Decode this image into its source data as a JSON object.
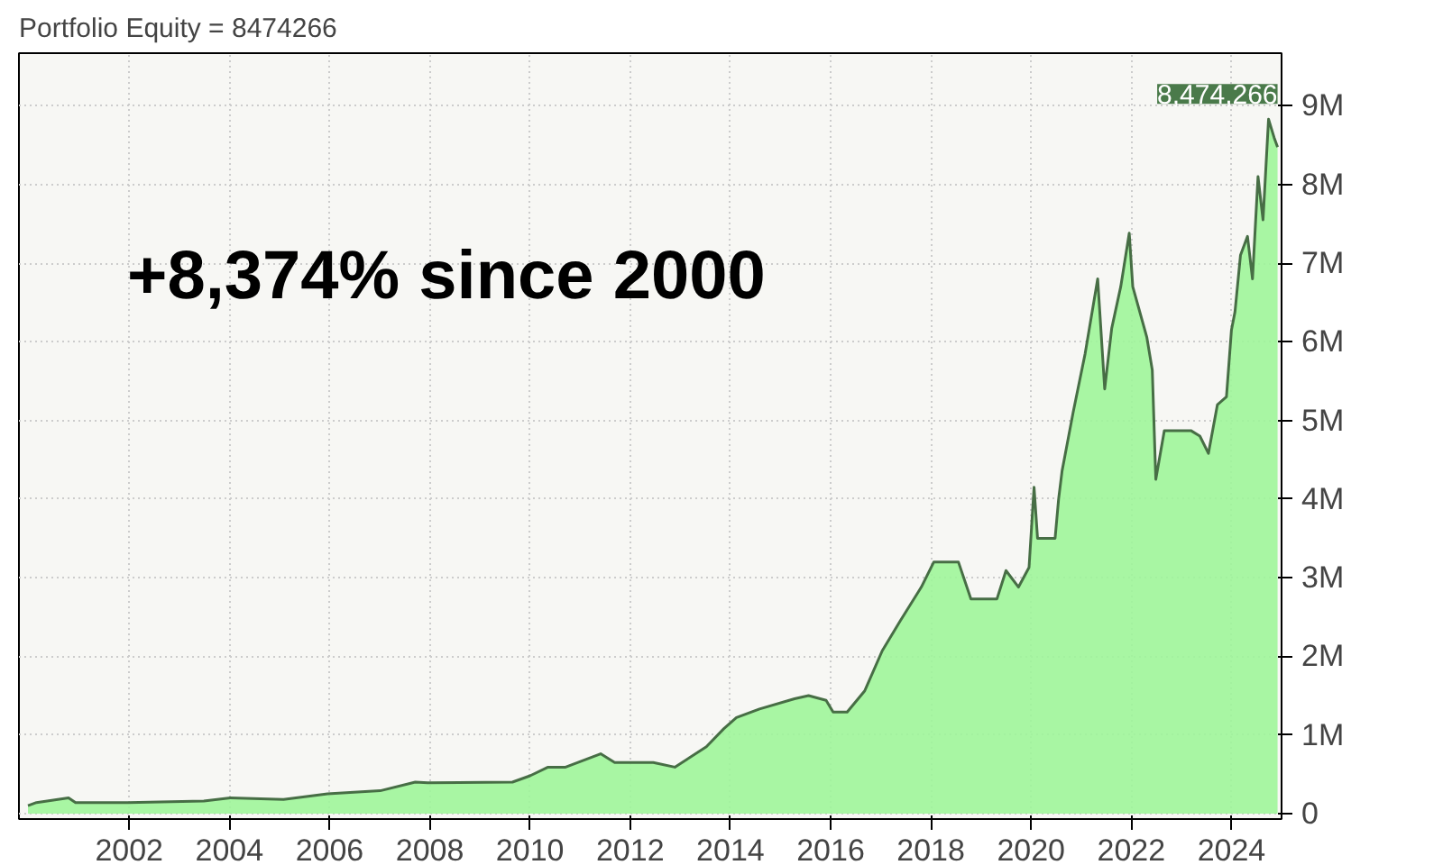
{
  "chart_data": {
    "type": "area",
    "title": "Portfolio Equity = 8474266",
    "annotations": [
      "+8,374% since 2000",
      {
        "text": "8,474,266",
        "x": 2024.92,
        "y": 8474266
      }
    ],
    "x": [
      1999.98,
      2000.15,
      2000.79,
      2000.93,
      2001.98,
      2003.49,
      2004.02,
      2005.08,
      2005.96,
      2007.01,
      2007.71,
      2007.96,
      2009.65,
      2010.0,
      2010.36,
      2010.71,
      2011.41,
      2011.69,
      2012.46,
      2012.89,
      2013.52,
      2013.87,
      2014.12,
      2014.58,
      2015.28,
      2015.56,
      2015.91,
      2016.05,
      2016.33,
      2016.68,
      2017.03,
      2017.39,
      2017.81,
      2018.06,
      2018.55,
      2018.8,
      2019.32,
      2019.5,
      2019.75,
      2019.96,
      2020.06,
      2020.13,
      2020.48,
      2020.55,
      2020.62,
      2020.84,
      2021.08,
      2021.33,
      2021.47,
      2021.61,
      2021.79,
      2021.96,
      2022.03,
      2022.31,
      2022.42,
      2022.49,
      2022.66,
      2023.19,
      2023.37,
      2023.54,
      2023.72,
      2023.9,
      2024.0,
      2024.07,
      2024.18,
      2024.32,
      2024.42,
      2024.53,
      2024.63,
      2024.74,
      2024.85,
      2024.92
    ],
    "series": [
      {
        "color": "#9ef59a",
        "values": [
          100000,
          140000,
          200000,
          140000,
          140000,
          160000,
          200000,
          180000,
          250000,
          290000,
          400000,
          390000,
          400000,
          480000,
          590000,
          590000,
          760000,
          650000,
          650000,
          590000,
          850000,
          1080000,
          1220000,
          1330000,
          1460000,
          1500000,
          1440000,
          1290000,
          1290000,
          1560000,
          2070000,
          2450000,
          2880000,
          3200000,
          3200000,
          2730000,
          2730000,
          3090000,
          2880000,
          3130000,
          4150000,
          3500000,
          3500000,
          4000000,
          4360000,
          5100000,
          5850000,
          6800000,
          5400000,
          6170000,
          6700000,
          7380000,
          6700000,
          6060000,
          5640000,
          4250000,
          4870000,
          4870000,
          4800000,
          4580000,
          5200000,
          5300000,
          6150000,
          6380000,
          7100000,
          7340000,
          6800000,
          8100000,
          7550000,
          8830000,
          8600000,
          8474266
        ]
      }
    ],
    "xlim": [
      1999.8,
      2025.0
    ],
    "ylim": [
      -70000,
      9670000
    ],
    "xticks": [
      2002,
      2004,
      2006,
      2008,
      2010,
      2012,
      2014,
      2016,
      2018,
      2020,
      2022,
      2024
    ],
    "yticks": [
      {
        "value": 0,
        "label": "0"
      },
      {
        "value": 1000000,
        "label": "1M"
      },
      {
        "value": 2000000,
        "label": "2M"
      },
      {
        "value": 3000000,
        "label": "3M"
      },
      {
        "value": 4000000,
        "label": "4M"
      },
      {
        "value": 5000000,
        "label": "5M"
      },
      {
        "value": 6000000,
        "label": "6M"
      },
      {
        "value": 7000000,
        "label": "7M"
      },
      {
        "value": 8000000,
        "label": "8M"
      },
      {
        "value": 9000000,
        "label": "9M"
      }
    ],
    "grid": true
  }
}
